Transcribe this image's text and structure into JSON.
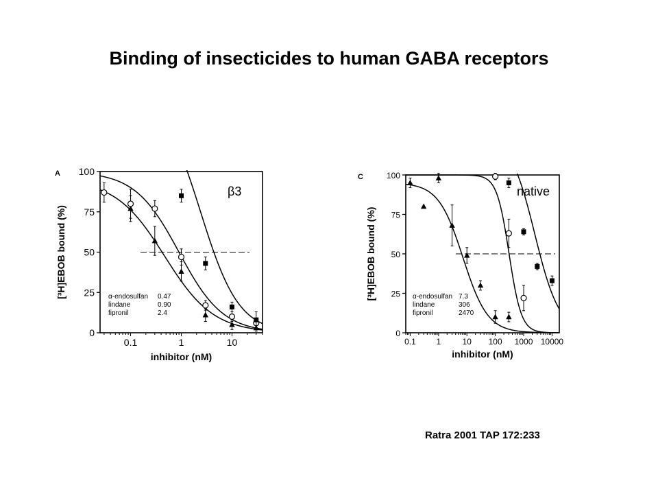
{
  "slide": {
    "title": "Binding of insecticides to human GABA receptors",
    "citation": "Ratra 2001 TAP 172:233"
  },
  "chart_data": [
    {
      "type": "scatter",
      "panel_label": "A",
      "inset_label": "β3",
      "xlabel": "inhibitor (nM)",
      "ylabel": "[³H]EBOB bound (%)",
      "x_scale": "log",
      "xlim": [
        0.025,
        40
      ],
      "ylim": [
        0,
        100
      ],
      "x_ticks": [
        0.1,
        1,
        10
      ],
      "x_tick_labels": [
        "0.1",
        "1",
        "10"
      ],
      "y_ticks": [
        0,
        25,
        50,
        75,
        100
      ],
      "y_tick_labels": [
        "0",
        "25",
        "50",
        "75",
        "100"
      ],
      "midline": 50,
      "legend": [
        {
          "name": "α-endosulfan",
          "value": "0.47"
        },
        {
          "name": "lindane",
          "value": "0.90"
        },
        {
          "name": "fipronil",
          "value": "2.4"
        }
      ],
      "series": [
        {
          "marker": "triangle",
          "ic50": 0.47,
          "top": 95,
          "hill": 0.9,
          "points": [
            [
              0.1,
              77,
              8
            ],
            [
              0.3,
              57,
              9
            ],
            [
              1,
              38,
              6
            ],
            [
              3,
              11,
              4
            ],
            [
              10,
              5,
              3
            ],
            [
              30,
              3,
              2
            ]
          ]
        },
        {
          "marker": "open-circle",
          "ic50": 0.9,
          "top": 100,
          "hill": 1.0,
          "points": [
            [
              0.03,
              87,
              6
            ],
            [
              0.1,
              80,
              9
            ],
            [
              0.3,
              77,
              5
            ],
            [
              1,
              47,
              5
            ],
            [
              3,
              17,
              3
            ],
            [
              10,
              10,
              3
            ],
            [
              30,
              6,
              3
            ]
          ]
        },
        {
          "marker": "square",
          "ic50": 2.4,
          "top": 150,
          "hill": 1.15,
          "points": [
            [
              1,
              85,
              4
            ],
            [
              3,
              43,
              4
            ],
            [
              10,
              16,
              3
            ],
            [
              30,
              8,
              5
            ]
          ]
        }
      ]
    },
    {
      "type": "scatter",
      "panel_label": "C",
      "inset_label": "native",
      "xlabel": "inhibitor (nM)",
      "ylabel": "[³H]EBOB bound (%)",
      "x_scale": "log",
      "xlim": [
        0.07,
        18000
      ],
      "ylim": [
        0,
        100
      ],
      "x_ticks": [
        0.1,
        1,
        10,
        100,
        1000,
        10000
      ],
      "x_tick_labels": [
        "0.1",
        "1",
        "10",
        "100",
        "1000",
        "10000"
      ],
      "y_ticks": [
        0,
        25,
        50,
        75,
        100
      ],
      "y_tick_labels": [
        "0",
        "25",
        "50",
        "75",
        "100"
      ],
      "midline": 50,
      "legend": [
        {
          "name": "α-endosulfan",
          "value": "7.3"
        },
        {
          "name": "lindane",
          "value": "306"
        },
        {
          "name": "fipronil",
          "value": "2470"
        }
      ],
      "series": [
        {
          "marker": "triangle",
          "ic50": 7.3,
          "top": 95,
          "hill": 1.0,
          "points": [
            [
              0.1,
              95,
              3
            ],
            [
              0.3,
              80,
              0
            ],
            [
              1,
              98,
              3
            ],
            [
              3,
              68,
              13
            ],
            [
              10,
              49,
              5
            ],
            [
              30,
              30,
              3
            ],
            [
              100,
              10,
              4
            ],
            [
              300,
              10,
              3
            ]
          ]
        },
        {
          "marker": "open-circle",
          "ic50": 306,
          "top": 100,
          "hill": 2.0,
          "points": [
            [
              100,
              99,
              2
            ],
            [
              300,
              63,
              9
            ],
            [
              1000,
              22,
              8
            ]
          ]
        },
        {
          "marker": "square",
          "ic50": 2470,
          "top": 125,
          "hill": 1.0,
          "points": [
            [
              300,
              95,
              3
            ],
            [
              1000,
              64,
              2
            ],
            [
              3000,
              42,
              2
            ],
            [
              10000,
              33,
              3
            ]
          ]
        }
      ]
    }
  ]
}
